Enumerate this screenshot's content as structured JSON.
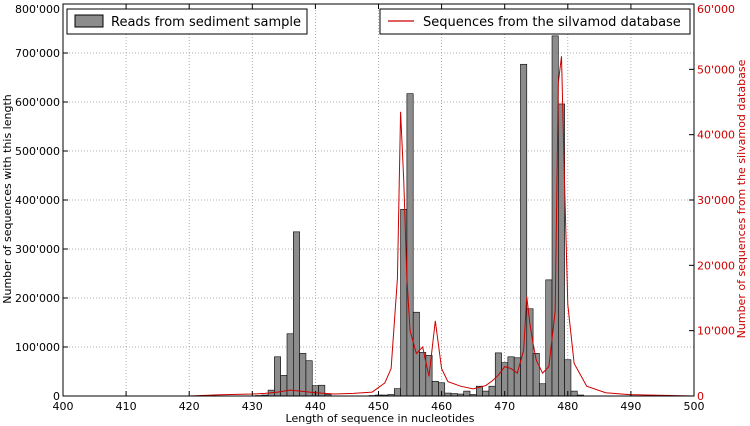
{
  "chart_data": {
    "type": "bar",
    "xlabel": "Length of sequence in nucleotides",
    "ylabel": "Number of sequences with this length",
    "ylabel_right": "Number of sequences from the silvamod database",
    "xlim": [
      400,
      500
    ],
    "ylim": [
      0,
      800000
    ],
    "ylim_right": [
      0,
      60000
    ],
    "x_ticks": [
      "400",
      "410",
      "420",
      "430",
      "440",
      "450",
      "460",
      "470",
      "480",
      "490",
      "500"
    ],
    "y_ticks": [
      "0",
      "100'000",
      "200'000",
      "300'000",
      "400'000",
      "500'000",
      "600'000",
      "700'000",
      "800'000"
    ],
    "y_ticks_right": [
      "0",
      "10'000",
      "20'000",
      "30'000",
      "40'000",
      "50'000",
      "60'000"
    ],
    "grid": true,
    "legend_left": "Reads from sediment sample",
    "legend_right": "Sequences from the silvamod database",
    "colors": {
      "bar": "#8c8c8c",
      "line": "#cc0000",
      "right_axis": "#cc0000"
    },
    "bars": {
      "name": "Reads from sediment sample",
      "x": [
        431,
        432,
        433,
        434,
        435,
        436,
        437,
        438,
        439,
        440,
        441,
        442,
        449,
        450,
        451,
        452,
        453,
        454,
        455,
        456,
        457,
        458,
        459,
        460,
        461,
        462,
        463,
        464,
        465,
        466,
        467,
        468,
        469,
        470,
        471,
        472,
        473,
        474,
        475,
        476,
        477,
        478,
        479,
        480,
        481,
        482
      ],
      "values": [
        1000,
        2000,
        12000,
        80000,
        42000,
        127000,
        335000,
        87000,
        72000,
        21000,
        22000,
        3000,
        1000,
        2000,
        2000,
        3000,
        15000,
        381000,
        617000,
        171000,
        89000,
        83000,
        30000,
        27000,
        6000,
        5000,
        4000,
        10000,
        3000,
        20000,
        10000,
        20000,
        88000,
        68000,
        80000,
        78000,
        677000,
        178000,
        87000,
        25000,
        237000,
        735000,
        596000,
        74000,
        10000,
        2000
      ]
    },
    "line": {
      "name": "Sequences from the silvamod database",
      "x": [
        400,
        410,
        420,
        425,
        430,
        432,
        434,
        436,
        438,
        440,
        443,
        446,
        449,
        451,
        452,
        453,
        453.5,
        454,
        454.5,
        455,
        456,
        457,
        458,
        459,
        460,
        461,
        463,
        465,
        467,
        468,
        469,
        470,
        471,
        472,
        473,
        473.5,
        474,
        474.5,
        475,
        476,
        477,
        478,
        478.5,
        479,
        479.5,
        480,
        481,
        483,
        486,
        490,
        500
      ],
      "values": [
        0,
        0,
        0,
        200,
        300,
        400,
        600,
        900,
        700,
        500,
        300,
        400,
        600,
        2000,
        4200,
        18000,
        43500,
        33000,
        18000,
        10000,
        6500,
        7500,
        3000,
        11500,
        4200,
        2200,
        1500,
        1100,
        1600,
        2300,
        3200,
        4500,
        4200,
        3500,
        7000,
        15200,
        11000,
        8000,
        5500,
        3500,
        4500,
        13000,
        48000,
        52000,
        32000,
        14000,
        5000,
        1500,
        500,
        200,
        0
      ]
    }
  }
}
